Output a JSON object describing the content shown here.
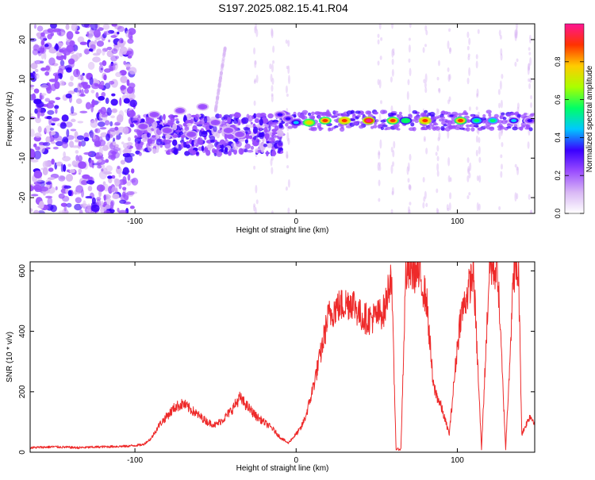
{
  "figure_title": "S197.2025.082.15.41.R04",
  "colors": {
    "snr_line": "#ee2a2a",
    "colormap": [
      "#ffffff",
      "#d9b8f5",
      "#9b4dff",
      "#3a00ff",
      "#00c8ff",
      "#00ff66",
      "#aaff00",
      "#ffcc00",
      "#ff3300",
      "#ff1493"
    ]
  },
  "chart_data": [
    {
      "type": "heatmap",
      "title": "",
      "xlabel": "Height of straight line (km)",
      "ylabel": "Frequency (Hz)",
      "xlim": [
        -165,
        148
      ],
      "ylim": [
        -24,
        24
      ],
      "x_ticks": [
        -100,
        0,
        100
      ],
      "x_tick_labels": [
        "-100",
        "0",
        "100"
      ],
      "y_ticks": [
        -20,
        -10,
        0,
        10,
        20
      ],
      "y_tick_labels": [
        "-20",
        "-10",
        "0",
        "10",
        "20"
      ],
      "colorbar": {
        "label": "Normalized spectral amplitude",
        "range": [
          0,
          1
        ],
        "ticks": [
          0.0,
          0.2,
          0.4,
          0.6,
          0.8
        ],
        "tick_labels": [
          "0.0",
          "0.2",
          "0.4",
          "0.6",
          "0.8"
        ]
      },
      "features": {
        "noise_region_x": [
          -165,
          -100
        ],
        "line_frequency_hz": -0.5,
        "blobs": [
          {
            "x": -95,
            "f": -2,
            "a": 0.25
          },
          {
            "x": -88,
            "f": 1,
            "a": 0.2
          },
          {
            "x": -80,
            "f": -3,
            "a": 0.22
          },
          {
            "x": -72,
            "f": 2,
            "a": 0.25
          },
          {
            "x": -65,
            "f": -4,
            "a": 0.2
          },
          {
            "x": -58,
            "f": 3,
            "a": 0.22
          },
          {
            "x": -50,
            "f": -1,
            "a": 0.25
          },
          {
            "x": -42,
            "f": -3,
            "a": 0.2
          },
          {
            "x": -35,
            "f": -4,
            "a": 0.2
          },
          {
            "x": -10,
            "f": 1,
            "a": 0.3
          },
          {
            "x": -5,
            "f": 0,
            "a": 0.35
          },
          {
            "x": 0,
            "f": -1,
            "a": 0.45
          },
          {
            "x": 8,
            "f": -1,
            "a": 0.8
          },
          {
            "x": 18,
            "f": -0.5,
            "a": 0.85
          },
          {
            "x": 30,
            "f": -0.5,
            "a": 0.9
          },
          {
            "x": 45,
            "f": -0.5,
            "a": 0.95
          },
          {
            "x": 60,
            "f": -0.5,
            "a": 0.85
          },
          {
            "x": 68,
            "f": -0.5,
            "a": 0.6
          },
          {
            "x": 80,
            "f": -0.5,
            "a": 0.9
          },
          {
            "x": 102,
            "f": -0.5,
            "a": 0.85
          },
          {
            "x": 112,
            "f": -0.5,
            "a": 0.55
          },
          {
            "x": 122,
            "f": -0.5,
            "a": 0.5
          },
          {
            "x": 135,
            "f": -0.5,
            "a": 0.4
          },
          {
            "x": 145,
            "f": -0.5,
            "a": 0.35
          }
        ],
        "vertical_streaks_x": [
          -25,
          -15,
          -5,
          52,
          60,
          70,
          80,
          88,
          95,
          107,
          113,
          127,
          137,
          145
        ]
      }
    },
    {
      "type": "line",
      "title": "",
      "xlabel": "Height of straight line (km)",
      "ylabel": "SNR (10 * v/v)",
      "xlim": [
        -165,
        148
      ],
      "ylim": [
        0,
        630
      ],
      "x_ticks": [
        -100,
        0,
        100
      ],
      "x_tick_labels": [
        "-100",
        "0",
        "100"
      ],
      "y_ticks": [
        0,
        200,
        400,
        600
      ],
      "y_tick_labels": [
        "0",
        "200",
        "400",
        "600"
      ],
      "series": [
        {
          "x": [
            -165,
            -150,
            -135,
            -120,
            -105,
            -95,
            -90,
            -85,
            -80,
            -75,
            -70,
            -65,
            -60,
            -55,
            -50,
            -45,
            -40,
            -35,
            -30,
            -25,
            -20,
            -15,
            -10,
            -5,
            0,
            3,
            6,
            9,
            12,
            15,
            18,
            20,
            25,
            30,
            35,
            40,
            45,
            50,
            55,
            59,
            62,
            65,
            68,
            72,
            75,
            78,
            81,
            85,
            90,
            95,
            100,
            102,
            105,
            110,
            115,
            120,
            125,
            130,
            135,
            138,
            140,
            145,
            148
          ],
          "y": [
            15,
            18,
            15,
            18,
            20,
            25,
            45,
            90,
            120,
            150,
            160,
            140,
            120,
            100,
            90,
            110,
            140,
            180,
            150,
            120,
            100,
            80,
            50,
            30,
            60,
            80,
            120,
            180,
            250,
            320,
            400,
            450,
            480,
            490,
            500,
            450,
            440,
            450,
            470,
            600,
            10,
            10,
            590,
            600,
            595,
            560,
            500,
            220,
            150,
            60,
            350,
            450,
            500,
            600,
            10,
            615,
            600,
            10,
            600,
            590,
            60,
            120,
            100
          ]
        }
      ]
    }
  ]
}
